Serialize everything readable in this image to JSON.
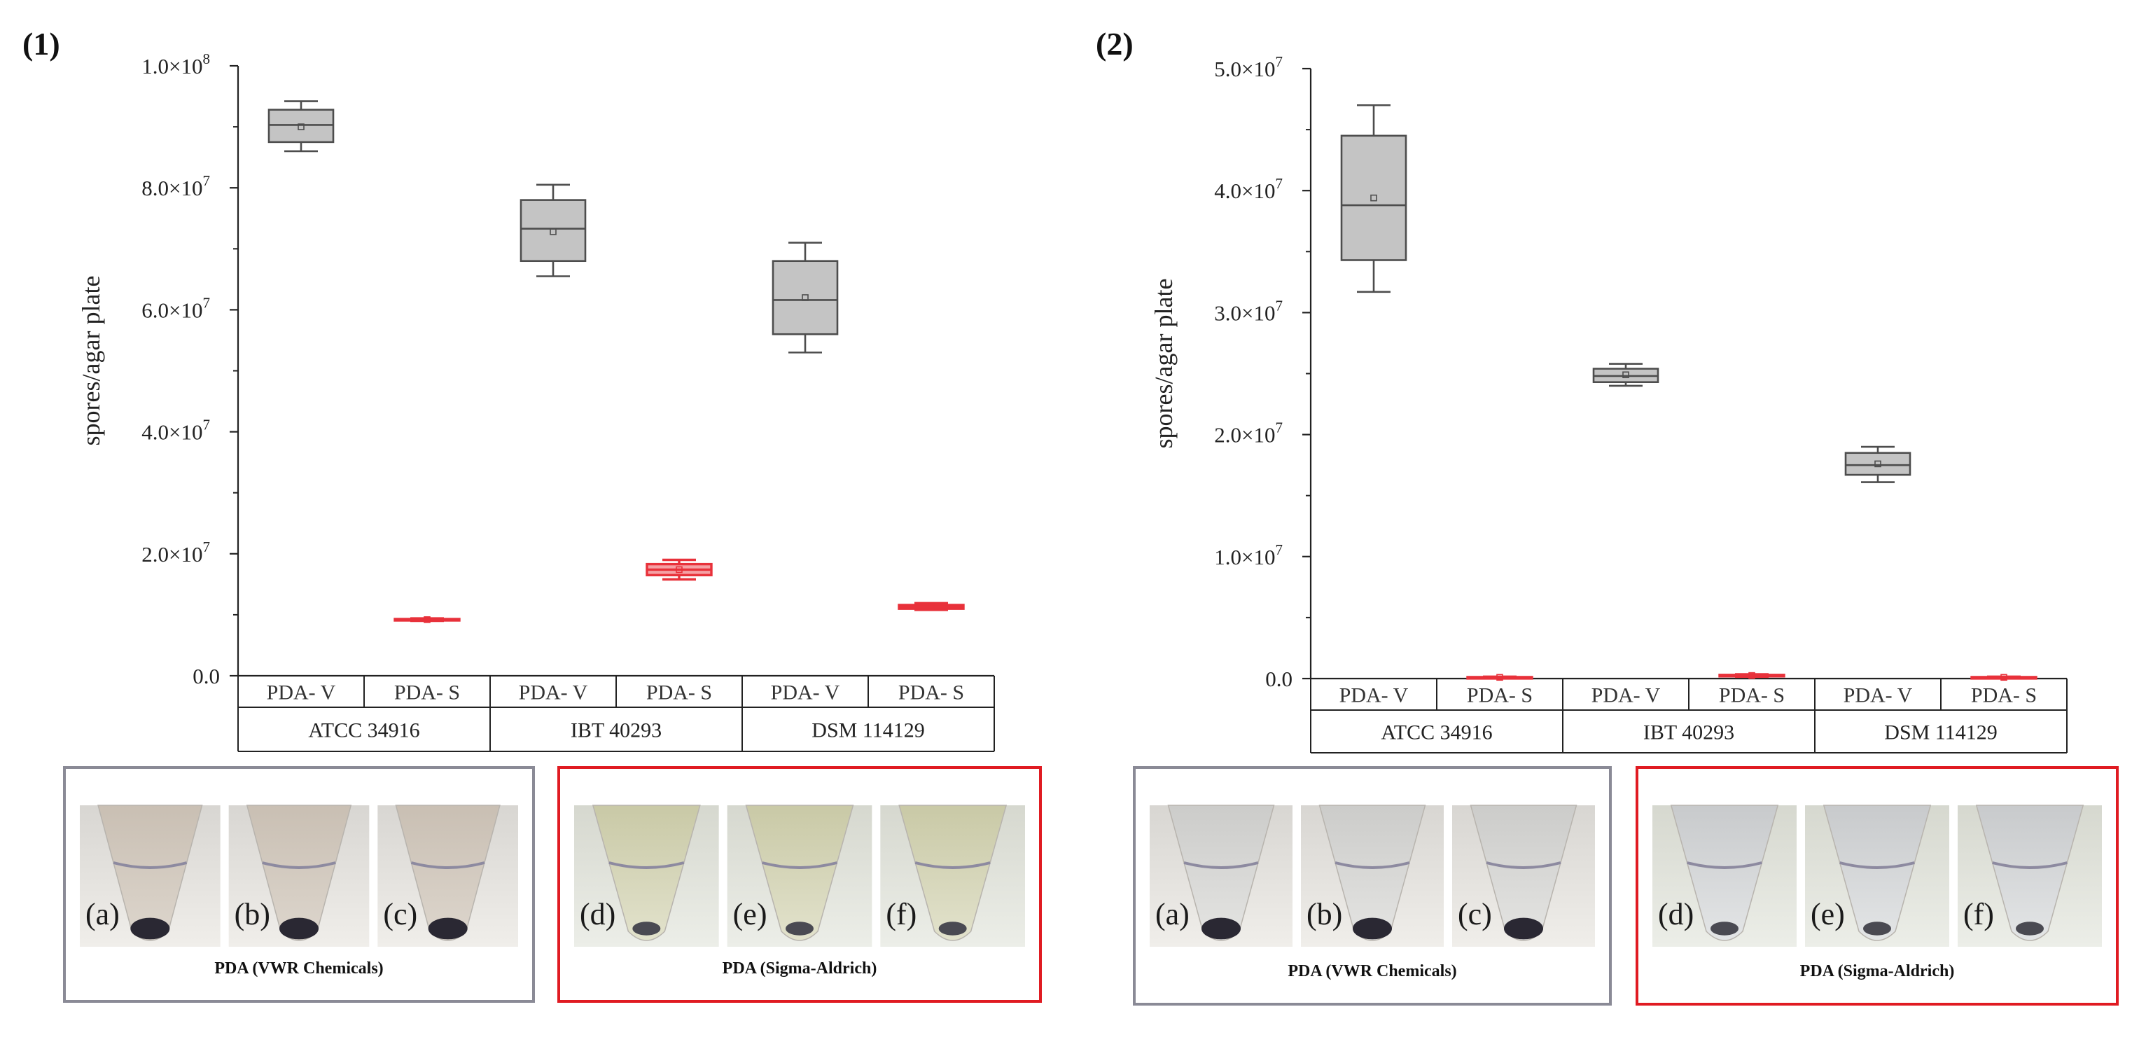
{
  "chart_data": [
    {
      "type": "box",
      "panel_label": "(1)",
      "ylabel": "spores/agar plate",
      "ylim": [
        0,
        100000000
      ],
      "y_ticks": [
        0,
        20000000,
        40000000,
        60000000,
        80000000,
        100000000
      ],
      "y_tick_labels": [
        "0.0",
        "2.0×10",
        "4.0×10",
        "6.0×10",
        "8.0×10",
        "1.0×10"
      ],
      "y_tick_exponents": [
        "",
        "7",
        "7",
        "7",
        "7",
        "8"
      ],
      "categories": [
        "PDA- V",
        "PDA- S",
        "PDA- V",
        "PDA- S",
        "PDA- V",
        "PDA- S"
      ],
      "groups": [
        "ATCC 34916",
        "IBT 40293",
        "DSM 114129"
      ],
      "boxes": [
        {
          "category": "PDA- V",
          "group": "ATCC 34916",
          "color": "#4d4d4d",
          "fill": "#c4c4c4",
          "min": 86000000,
          "q1": 87500000,
          "median": 90300000,
          "q3": 92800000,
          "max": 94200000,
          "mean": 90000000
        },
        {
          "category": "PDA- S",
          "group": "ATCC 34916",
          "color": "#e8313a",
          "fill": "#f5a0a4",
          "min": 9000000,
          "q1": 9100000,
          "median": 9200000,
          "q3": 9300000,
          "max": 9400000,
          "mean": 9200000
        },
        {
          "category": "PDA- V",
          "group": "IBT 40293",
          "color": "#4d4d4d",
          "fill": "#c4c4c4",
          "min": 65500000,
          "q1": 68000000,
          "median": 73300000,
          "q3": 78000000,
          "max": 80500000,
          "mean": 72800000
        },
        {
          "category": "PDA- S",
          "group": "IBT 40293",
          "color": "#e8313a",
          "fill": "#f5a0a4",
          "min": 15800000,
          "q1": 16500000,
          "median": 17400000,
          "q3": 18300000,
          "max": 19000000,
          "mean": 17400000
        },
        {
          "category": "PDA- V",
          "group": "DSM 114129",
          "color": "#4d4d4d",
          "fill": "#c4c4c4",
          "min": 53000000,
          "q1": 56000000,
          "median": 61600000,
          "q3": 68000000,
          "max": 71000000,
          "mean": 62000000
        },
        {
          "category": "PDA- S",
          "group": "DSM 114129",
          "color": "#e8313a",
          "fill": "#f5a0a4",
          "min": 10800000,
          "q1": 11000000,
          "median": 11300000,
          "q3": 11600000,
          "max": 11900000,
          "mean": 11300000
        }
      ],
      "photo_panels": [
        {
          "caption": "PDA (VWR Chemicals)",
          "border": "#8a8a96",
          "tubes": [
            "(a)",
            "(b)",
            "(c)"
          ]
        },
        {
          "caption": "PDA (Sigma-Aldrich)",
          "border": "#e01b22",
          "tubes": [
            "(d)",
            "(e)",
            "(f)"
          ]
        }
      ]
    },
    {
      "type": "box",
      "panel_label": "(2)",
      "ylabel": "spores/agar plate",
      "ylim": [
        0,
        50000000
      ],
      "y_ticks": [
        0,
        10000000,
        20000000,
        30000000,
        40000000,
        50000000
      ],
      "y_tick_labels": [
        "0.0",
        "1.0×10",
        "2.0×10",
        "3.0×10",
        "4.0×10",
        "5.0×10"
      ],
      "y_tick_exponents": [
        "",
        "7",
        "7",
        "7",
        "7",
        "7"
      ],
      "categories": [
        "PDA- V",
        "PDA- S",
        "PDA- V",
        "PDA- S",
        "PDA- V",
        "PDA- S"
      ],
      "groups": [
        "ATCC 34916",
        "IBT 40293",
        "DSM 114129"
      ],
      "boxes": [
        {
          "category": "PDA- V",
          "group": "ATCC 34916",
          "color": "#4d4d4d",
          "fill": "#c4c4c4",
          "min": 31700000,
          "q1": 34300000,
          "median": 38800000,
          "q3": 44500000,
          "max": 47000000,
          "mean": 39400000
        },
        {
          "category": "PDA- S",
          "group": "ATCC 34916",
          "color": "#e8313a",
          "fill": "#f5a0a4",
          "min": 50000,
          "q1": 80000,
          "median": 100000,
          "q3": 120000,
          "max": 150000,
          "mean": 100000
        },
        {
          "category": "PDA- V",
          "group": "IBT 40293",
          "color": "#4d4d4d",
          "fill": "#c4c4c4",
          "min": 24000000,
          "q1": 24300000,
          "median": 24800000,
          "q3": 25400000,
          "max": 25800000,
          "mean": 24900000
        },
        {
          "category": "PDA- S",
          "group": "IBT 40293",
          "color": "#e8313a",
          "fill": "#f5a0a4",
          "min": 150000,
          "q1": 200000,
          "median": 250000,
          "q3": 300000,
          "max": 350000,
          "mean": 250000
        },
        {
          "category": "PDA- V",
          "group": "DSM 114129",
          "color": "#4d4d4d",
          "fill": "#c4c4c4",
          "min": 16100000,
          "q1": 16700000,
          "median": 17500000,
          "q3": 18500000,
          "max": 19000000,
          "mean": 17600000
        },
        {
          "category": "PDA- S",
          "group": "DSM 114129",
          "color": "#e8313a",
          "fill": "#f5a0a4",
          "min": 50000,
          "q1": 80000,
          "median": 100000,
          "q3": 120000,
          "max": 150000,
          "mean": 100000
        }
      ],
      "photo_panels": [
        {
          "caption": "PDA (VWR Chemicals)",
          "border": "#8a8a96",
          "tubes": [
            "(a)",
            "(b)",
            "(c)"
          ]
        },
        {
          "caption": "PDA (Sigma-Aldrich)",
          "border": "#e01b22",
          "tubes": [
            "(d)",
            "(e)",
            "(f)"
          ]
        }
      ]
    }
  ]
}
